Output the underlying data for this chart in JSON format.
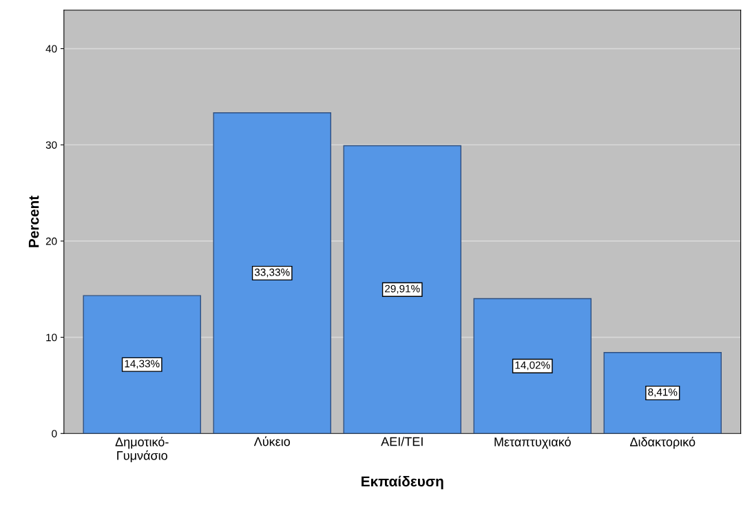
{
  "chart_data": {
    "type": "bar",
    "xlabel": "Εκπαίδευση",
    "ylabel": "Percent",
    "categories": [
      "Δημοτικό-\nΓυμνάσιο",
      "Λύκειο",
      "ΑΕΙ/ΤΕΙ",
      "Μεταπτυχιακό",
      "Διδακτορικό"
    ],
    "values": [
      14.33,
      33.33,
      29.91,
      14.02,
      8.41
    ],
    "value_labels": [
      "14,33%",
      "33,33%",
      "29,91%",
      "14,02%",
      "8,41%"
    ],
    "color": "#5596e6",
    "ylim": [
      0,
      44
    ],
    "yticks": [
      0,
      10,
      20,
      30,
      40
    ],
    "grid": "y",
    "legend": false
  }
}
